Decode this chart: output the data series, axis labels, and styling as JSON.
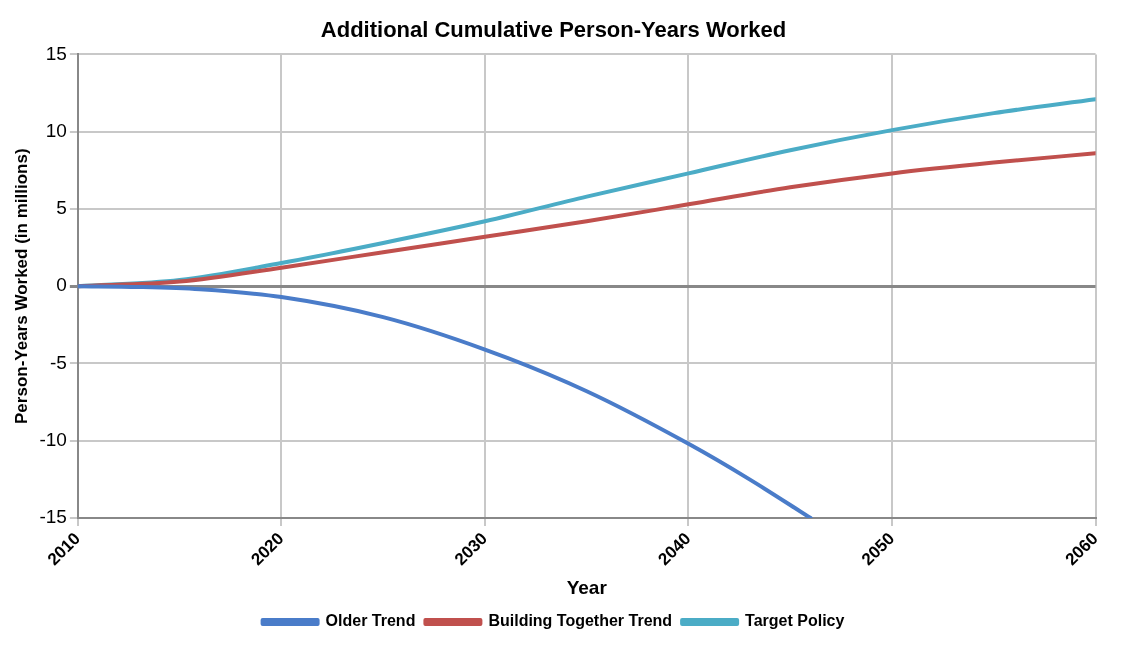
{
  "chart_data": {
    "type": "line",
    "title": "Additional Cumulative Person-Years Worked",
    "xlabel": "Year",
    "ylabel": "Person-Years Worked (in millions)",
    "x": [
      2010,
      2015,
      2020,
      2025,
      2030,
      2035,
      2040,
      2045,
      2050,
      2055,
      2060
    ],
    "series": [
      {
        "name": "Older Trend",
        "color": "#4a7cc9",
        "x": [
          2010,
          2013,
          2016,
          2020,
          2025,
          2030,
          2035,
          2040,
          2043,
          2046
        ],
        "values": [
          0,
          -0.05,
          -0.2,
          -0.7,
          -2,
          -4.1,
          -6.8,
          -10.2,
          -12.5,
          -15
        ]
      },
      {
        "name": "Building Together Trend",
        "color": "#c0504d",
        "values": [
          0,
          0.3,
          1.2,
          2.2,
          3.2,
          4.2,
          5.3,
          6.4,
          7.3,
          8.0,
          8.6
        ]
      },
      {
        "name": "Target Policy",
        "color": "#4bacc6",
        "values": [
          0,
          0.4,
          1.5,
          2.8,
          4.2,
          5.8,
          7.3,
          8.8,
          10.1,
          11.2,
          12.1
        ]
      }
    ],
    "xlim": [
      2010,
      2060
    ],
    "xticks": [
      2010,
      2020,
      2030,
      2040,
      2050,
      2060
    ],
    "ylim": [
      -15,
      15
    ],
    "yticks": [
      -15,
      -10,
      -5,
      0,
      5,
      10,
      15
    ],
    "grid": true,
    "legend": "bottom",
    "marker": "none",
    "line_style": "solid"
  }
}
